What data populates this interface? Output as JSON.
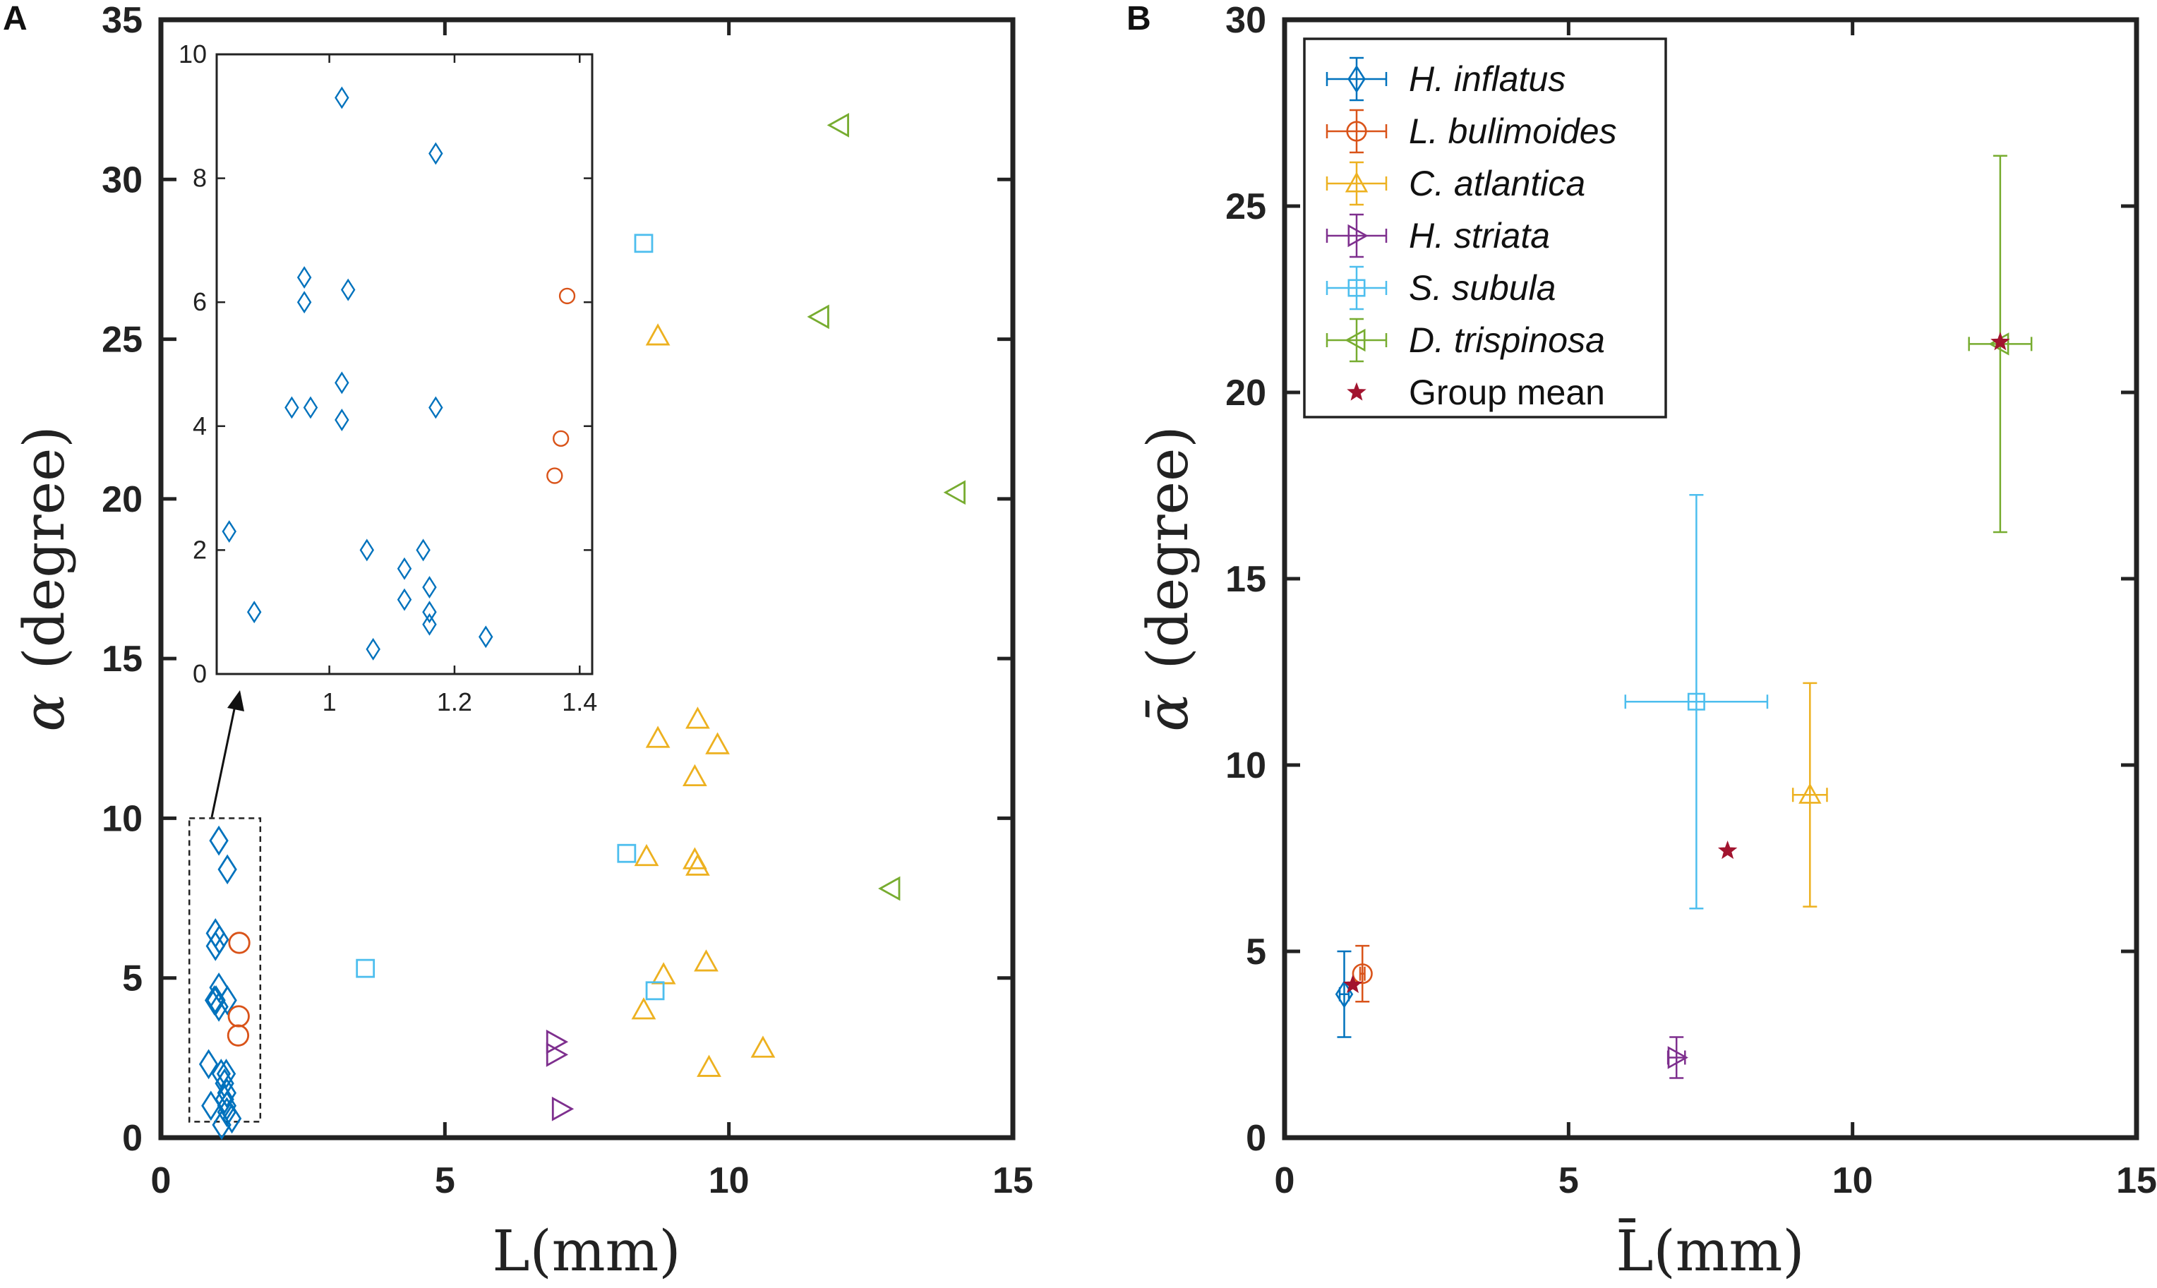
{
  "chart_data": [
    {
      "panel": "A",
      "type": "scatter",
      "xlabel": "L(mm)",
      "ylabel_symbol": "α",
      "ylabel_unit": "(degree)",
      "xlim": [
        0,
        15
      ],
      "ylim": [
        0,
        35
      ],
      "xticks": [
        0,
        5,
        10,
        15
      ],
      "yticks": [
        0,
        5,
        10,
        15,
        20,
        25,
        30,
        35
      ],
      "series": [
        {
          "name": "H. inflatus",
          "marker": "diamond",
          "color": "#0072BD",
          "points": [
            [
              1.02,
              9.3
            ],
            [
              1.17,
              8.4
            ],
            [
              0.96,
              6.4
            ],
            [
              1.03,
              6.2
            ],
            [
              0.96,
              6.0
            ],
            [
              1.02,
              4.7
            ],
            [
              0.94,
              4.3
            ],
            [
              0.97,
              4.3
            ],
            [
              1.17,
              4.3
            ],
            [
              1.02,
              4.1
            ],
            [
              1.06,
              2.0
            ],
            [
              1.15,
              2.0
            ],
            [
              1.12,
              1.7
            ],
            [
              1.16,
              1.4
            ],
            [
              1.12,
              1.2
            ],
            [
              1.16,
              1.0
            ],
            [
              1.16,
              0.8
            ],
            [
              0.84,
              2.3
            ],
            [
              1.25,
              0.6
            ],
            [
              1.07,
              0.4
            ],
            [
              0.88,
              1.0
            ]
          ]
        },
        {
          "name": "L. bulimoides",
          "marker": "circle",
          "color": "#D95319",
          "points": [
            [
              1.38,
              6.1
            ],
            [
              1.37,
              3.8
            ],
            [
              1.36,
              3.2
            ]
          ]
        },
        {
          "name": "C. atlantica",
          "marker": "triangle-up",
          "color": "#EDB120",
          "points": [
            [
              8.75,
              25.1
            ],
            [
              9.45,
              13.1
            ],
            [
              8.75,
              12.5
            ],
            [
              9.8,
              12.3
            ],
            [
              9.4,
              11.3
            ],
            [
              8.55,
              8.8
            ],
            [
              9.4,
              8.7
            ],
            [
              9.45,
              8.5
            ],
            [
              9.6,
              5.5
            ],
            [
              8.85,
              5.1
            ],
            [
              8.5,
              4.0
            ],
            [
              10.6,
              2.8
            ],
            [
              9.65,
              2.2
            ]
          ]
        },
        {
          "name": "H. striata",
          "marker": "triangle-right",
          "color": "#7E2F8E",
          "points": [
            [
              6.95,
              3.0
            ],
            [
              6.95,
              2.6
            ],
            [
              7.05,
              0.9
            ]
          ]
        },
        {
          "name": "S. subula",
          "marker": "square",
          "color": "#4DBEEE",
          "points": [
            [
              8.5,
              28.0
            ],
            [
              8.2,
              8.9
            ],
            [
              8.7,
              4.6
            ],
            [
              3.6,
              5.3
            ]
          ]
        },
        {
          "name": "D. trispinosa",
          "marker": "triangle-left",
          "color": "#77AC30",
          "points": [
            [
              11.95,
              31.7
            ],
            [
              11.6,
              25.7
            ],
            [
              14.0,
              20.2
            ],
            [
              12.85,
              7.8
            ]
          ]
        }
      ],
      "inset": {
        "xlim": [
          0.82,
          1.42
        ],
        "ylim": [
          0,
          10
        ],
        "xticks": [
          1,
          1.2,
          1.4
        ],
        "xtick_labels": [
          "1",
          "1.2",
          "1.4"
        ],
        "yticks": [
          0,
          2,
          4,
          6,
          8,
          10
        ],
        "region_x": [
          0.5,
          1.75
        ],
        "region_y": [
          0.5,
          10
        ]
      }
    },
    {
      "panel": "B",
      "type": "scatter",
      "xlabel": "L̄(mm)",
      "ylabel_symbol": "ᾱ",
      "ylabel_unit": "(degree)",
      "xlim": [
        0,
        15
      ],
      "ylim": [
        0,
        30
      ],
      "xticks": [
        0,
        5,
        10,
        15
      ],
      "yticks": [
        0,
        5,
        10,
        15,
        20,
        25,
        30
      ],
      "series": [
        {
          "name": "H. inflatus",
          "marker": "diamond",
          "color": "#0072BD",
          "x": 1.05,
          "y": 3.85,
          "xerr": 0.08,
          "yerr": 1.15
        },
        {
          "name": "L. bulimoides",
          "marker": "circle",
          "color": "#D95319",
          "x": 1.37,
          "y": 4.4,
          "xerr": 0.04,
          "yerr": 0.75
        },
        {
          "name": "C. atlantica",
          "marker": "triangle-up",
          "color": "#EDB120",
          "x": 9.25,
          "y": 9.2,
          "xerr": 0.3,
          "yerr": 3.0
        },
        {
          "name": "H. striata",
          "marker": "triangle-right",
          "color": "#7E2F8E",
          "x": 6.9,
          "y": 2.15,
          "xerr": 0.15,
          "yerr": 0.55
        },
        {
          "name": "S. subula",
          "marker": "square",
          "color": "#4DBEEE",
          "x": 7.25,
          "y": 11.7,
          "xerr": 1.25,
          "yerr": 5.55
        },
        {
          "name": "D. trispinosa",
          "marker": "triangle-left",
          "color": "#77AC30",
          "x": 12.6,
          "y": 21.3,
          "xerr": 0.55,
          "yerr": 5.05
        }
      ],
      "group_mean": {
        "name": "Group mean",
        "marker": "star",
        "color": "#A2142F",
        "points": [
          [
            1.2,
            4.1
          ],
          [
            7.8,
            7.7
          ],
          [
            12.6,
            21.35
          ]
        ]
      },
      "legend_position": "top-left"
    }
  ]
}
